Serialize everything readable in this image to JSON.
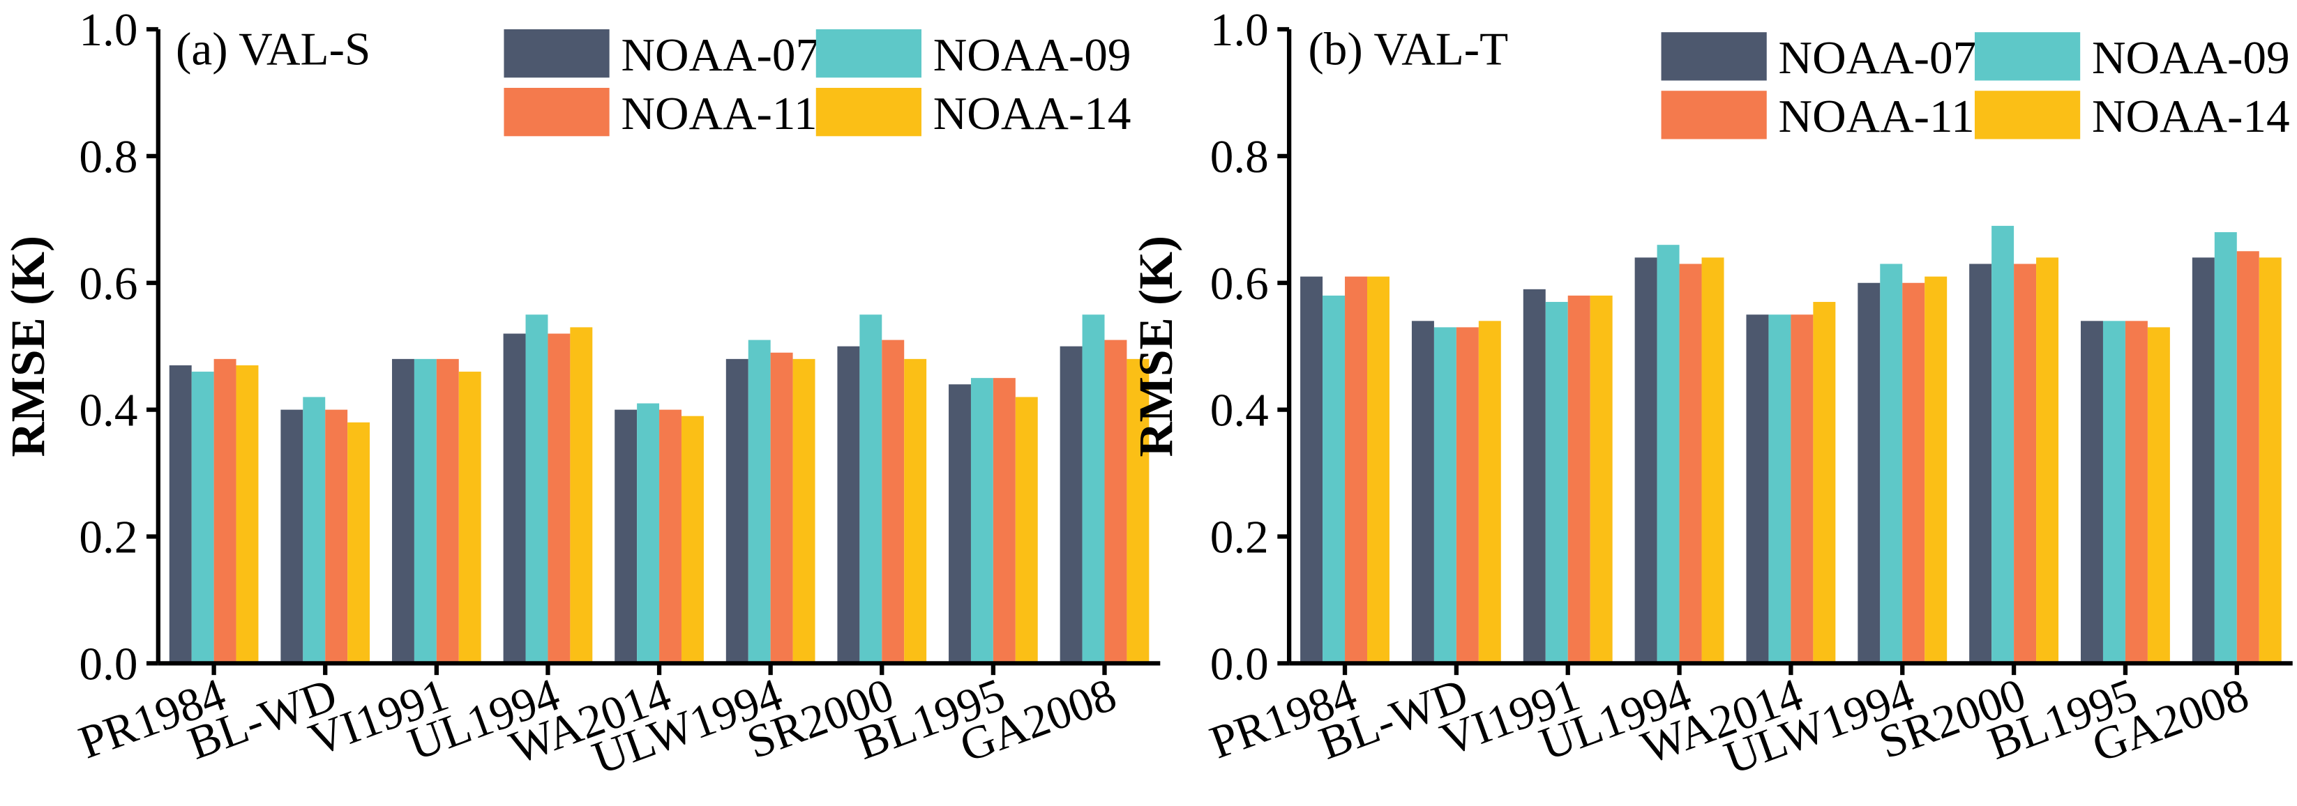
{
  "colors": {
    "NOAA-07": "#4d586e",
    "NOAA-09": "#5ec8c8",
    "NOAA-11": "#f47a4d",
    "NOAA-14": "#fbbf16"
  },
  "chart_data": [
    {
      "type": "bar",
      "title": "(a) VAL-S",
      "xlabel": "",
      "ylabel": "RMSE (K)",
      "ylim": [
        0,
        1.0
      ],
      "yticks": [
        "0.0",
        "0.2",
        "0.4",
        "0.6",
        "0.8",
        "1.0"
      ],
      "legend": [
        "NOAA-07",
        "NOAA-09",
        "NOAA-11",
        "NOAA-14"
      ],
      "legend_position": "top-right",
      "categories": [
        "PR1984",
        "BL-WD",
        "VI1991",
        "UL1994",
        "WA2014",
        "ULW1994",
        "SR2000",
        "BL1995",
        "GA2008"
      ],
      "series": [
        {
          "name": "NOAA-07",
          "values": [
            0.47,
            0.4,
            0.48,
            0.52,
            0.4,
            0.48,
            0.5,
            0.44,
            0.5
          ]
        },
        {
          "name": "NOAA-09",
          "values": [
            0.46,
            0.42,
            0.48,
            0.55,
            0.41,
            0.51,
            0.55,
            0.45,
            0.55
          ]
        },
        {
          "name": "NOAA-11",
          "values": [
            0.48,
            0.4,
            0.48,
            0.52,
            0.4,
            0.49,
            0.51,
            0.45,
            0.51
          ]
        },
        {
          "name": "NOAA-14",
          "values": [
            0.47,
            0.38,
            0.46,
            0.53,
            0.39,
            0.48,
            0.48,
            0.42,
            0.48
          ]
        }
      ]
    },
    {
      "type": "bar",
      "title": "(b) VAL-T",
      "xlabel": "",
      "ylabel": "RMSE (K)",
      "ylim": [
        0,
        1.0
      ],
      "yticks": [
        "0.0",
        "0.2",
        "0.4",
        "0.6",
        "0.8",
        "1.0"
      ],
      "legend": [
        "NOAA-07",
        "NOAA-09",
        "NOAA-11",
        "NOAA-14"
      ],
      "legend_position": "top-right",
      "categories": [
        "PR1984",
        "BL-WD",
        "VI1991",
        "UL1994",
        "WA2014",
        "ULW1994",
        "SR2000",
        "BL1995",
        "GA2008"
      ],
      "series": [
        {
          "name": "NOAA-07",
          "values": [
            0.61,
            0.54,
            0.59,
            0.64,
            0.55,
            0.6,
            0.63,
            0.54,
            0.64
          ]
        },
        {
          "name": "NOAA-09",
          "values": [
            0.58,
            0.53,
            0.57,
            0.66,
            0.55,
            0.63,
            0.69,
            0.54,
            0.68
          ]
        },
        {
          "name": "NOAA-11",
          "values": [
            0.61,
            0.53,
            0.58,
            0.63,
            0.55,
            0.6,
            0.63,
            0.54,
            0.65
          ]
        },
        {
          "name": "NOAA-14",
          "values": [
            0.61,
            0.54,
            0.58,
            0.64,
            0.57,
            0.61,
            0.64,
            0.53,
            0.64
          ]
        }
      ]
    }
  ]
}
